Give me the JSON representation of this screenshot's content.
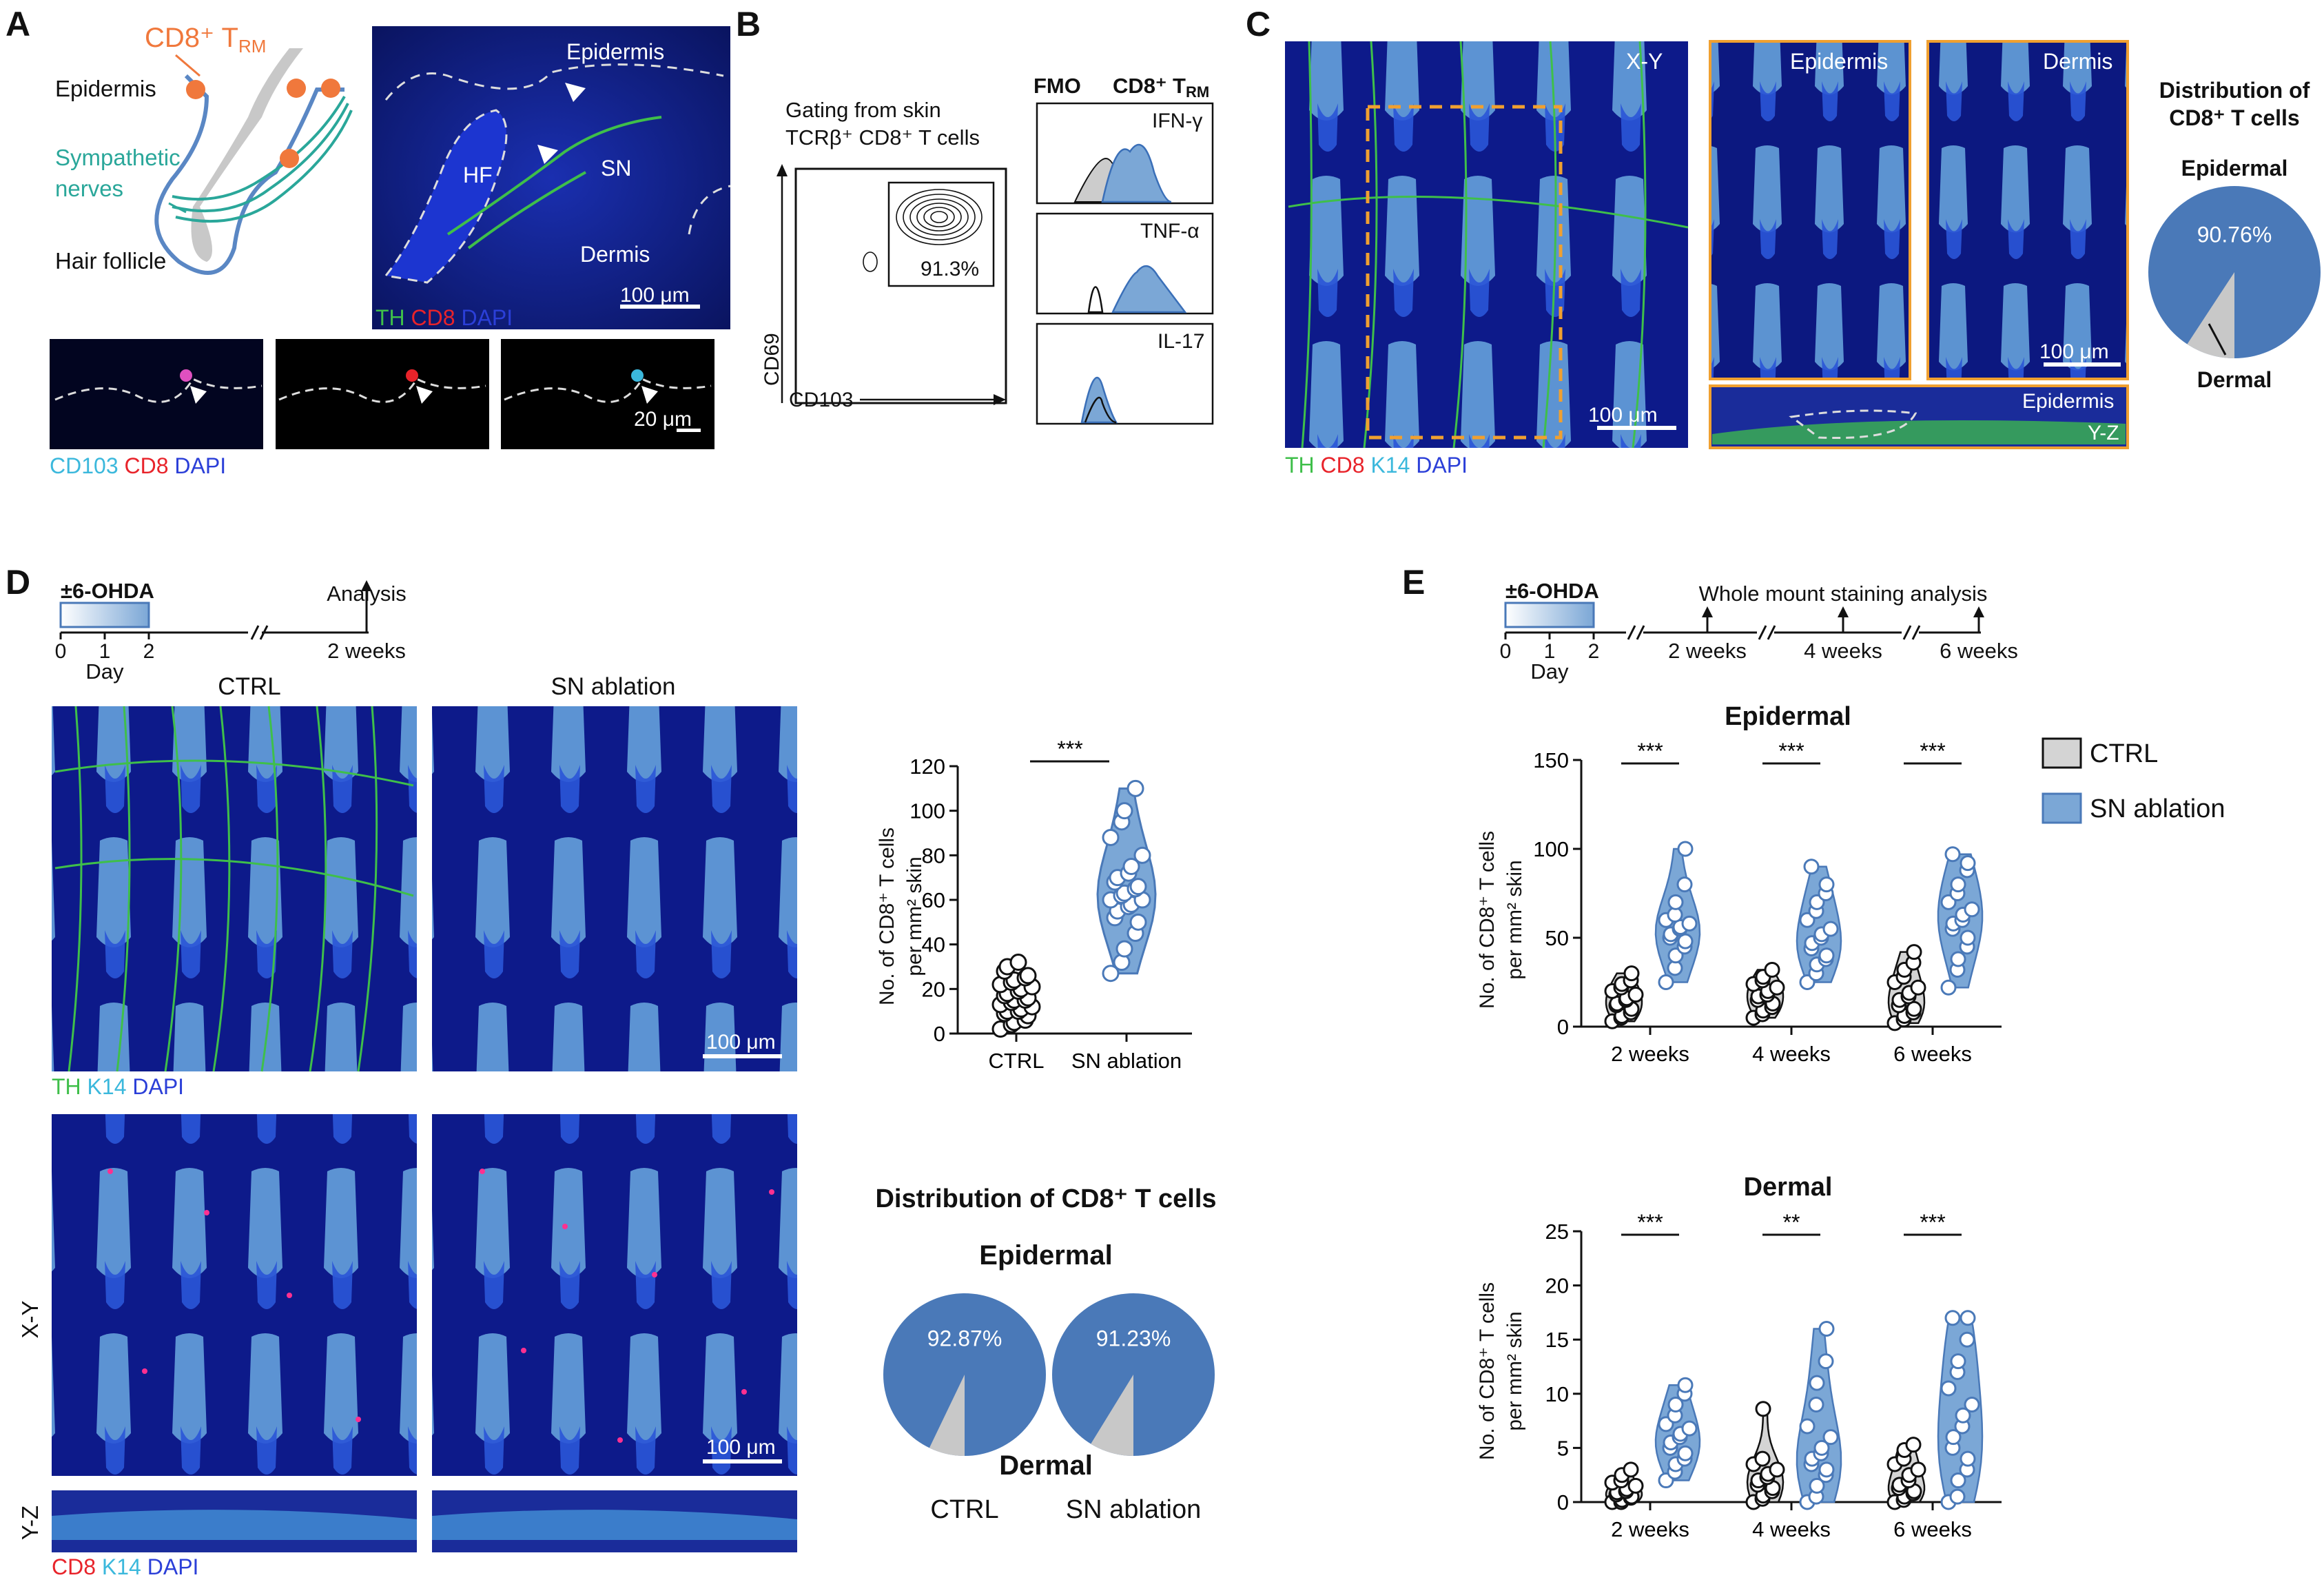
{
  "panels": {
    "A": {
      "label": "A",
      "schematic": {
        "cd8_trm": "CD8⁺ T",
        "cd8_trm_sub": "RM",
        "epidermis": "Epidermis",
        "sympathetic_nerves": "Sympathetic nerves",
        "sympathetic_line1": "Sympathetic",
        "sympathetic_line2": "nerves",
        "hair_follicle": "Hair follicle"
      },
      "image_labels": {
        "epidermis": "Epidermis",
        "hf": "HF",
        "sn": "SN",
        "dermis": "Dermis",
        "scale_100": "100 μm",
        "scale_20": "20 μm"
      },
      "stain_main": {
        "th": "TH",
        "cd8": "CD8",
        "dapi": "DAPI"
      },
      "stain_small": {
        "cd103": "CD103",
        "cd8": "CD8",
        "dapi": "DAPI"
      }
    },
    "B": {
      "label": "B",
      "gating_line1": "Gating from skin",
      "gating_line2": "TCRβ⁺ CD8⁺ T cells",
      "x_axis": "CD103",
      "y_axis": "CD69",
      "gate_percent": "91.3%",
      "legend_fmo": "FMO",
      "legend_trm": "CD8⁺ T",
      "legend_trm_sub": "RM",
      "histograms": [
        "IFN-γ",
        "TNF-α",
        "IL-17"
      ]
    },
    "C": {
      "label": "C",
      "xy": "X-Y",
      "yz": "Y-Z",
      "epidermis": "Epidermis",
      "dermis": "Dermis",
      "scale": "100 μm",
      "stain": {
        "th": "TH",
        "cd8": "CD8",
        "k14": "K14",
        "dapi": "DAPI"
      },
      "pie_title_line1": "Distribution of",
      "pie_title_line2": "CD8⁺ T cells",
      "pie_epidermal_label": "Epidermal",
      "pie_dermal_label": "Dermal",
      "pie_percent": "90.76%",
      "pie_value": 90.76
    },
    "D": {
      "label": "D",
      "timeline": {
        "treatment": "±6-OHDA",
        "ticks": [
          "0",
          "1",
          "2"
        ],
        "day": "Day",
        "analysis": "Analysis",
        "end": "2 weeks"
      },
      "ctrl": "CTRL",
      "sn_ablation": "SN ablation",
      "scale": "100 μm",
      "stain1": {
        "th": "TH",
        "k14": "K14",
        "dapi": "DAPI"
      },
      "stain2": {
        "cd8": "CD8",
        "k14": "K14",
        "dapi": "DAPI"
      },
      "xy": "X-Y",
      "yz": "Y-Z",
      "significance": "***",
      "y_label_line1": "No. of CD8⁺ T cells",
      "y_label_line2": "per mm² skin",
      "pie_title": "Distribution of CD8⁺ T cells",
      "pie_epidermal": "Epidermal",
      "pie_dermal": "Dermal",
      "pie_ctrl_percent": "92.87%",
      "pie_sn_percent": "91.23%",
      "pie_ctrl_label": "CTRL",
      "pie_sn_label": "SN ablation"
    },
    "E": {
      "label": "E",
      "timeline": {
        "treatment": "±6-OHDA",
        "ticks": [
          "0",
          "1",
          "2"
        ],
        "day": "Day",
        "analysis": "Whole mount staining analysis",
        "points": [
          "2 weeks",
          "4 weeks",
          "6 weeks"
        ]
      },
      "epidermal_title": "Epidermal",
      "dermal_title": "Dermal",
      "y_label_line1": "No. of CD8⁺ T cells",
      "y_label_line2": "per mm² skin",
      "epidermal_sig": [
        "***",
        "***",
        "***"
      ],
      "dermal_sig": [
        "***",
        "**",
        "***"
      ],
      "legend": {
        "ctrl": "CTRL",
        "sn": "SN ablation"
      }
    }
  },
  "colors": {
    "ctrl_fill": "#d4d4d4",
    "sn_fill": "#7ba7d6",
    "sn_edge": "#4a79b8",
    "pie_blue": "#4a79b8",
    "pie_gray": "#c8c8c8",
    "label_blue": "#5a87c4",
    "orange": "#f0783c",
    "teal": "#2aa79a"
  },
  "chart_data": [
    {
      "id": "D-violin",
      "type": "scatter",
      "title": "",
      "ylabel": "No. of CD8⁺ T cells per mm² skin",
      "ylim": [
        0,
        120
      ],
      "yticks": [
        0,
        20,
        40,
        60,
        80,
        100,
        120
      ],
      "categories": [
        "CTRL",
        "SN ablation"
      ],
      "series": [
        {
          "name": "CTRL",
          "values": [
            2,
            4,
            5,
            6,
            8,
            9,
            10,
            10,
            11,
            12,
            13,
            14,
            15,
            15,
            16,
            17,
            18,
            19,
            20,
            21,
            22,
            23,
            24,
            25,
            26,
            28,
            30,
            32
          ]
        },
        {
          "name": "SN ablation",
          "values": [
            27,
            32,
            38,
            45,
            50,
            52,
            55,
            57,
            58,
            60,
            60,
            62,
            63,
            65,
            66,
            68,
            70,
            72,
            75,
            80,
            88,
            95,
            100,
            110
          ]
        }
      ]
    },
    {
      "id": "E-epidermal",
      "type": "scatter",
      "title": "Epidermal",
      "ylabel": "No. of CD8⁺ T cells per mm² skin",
      "ylim": [
        0,
        150
      ],
      "yticks": [
        0,
        50,
        100,
        150
      ],
      "categories": [
        "2 weeks",
        "4 weeks",
        "6 weeks"
      ],
      "series": [
        {
          "name": "CTRL",
          "values": [
            [
              3,
              5,
              6,
              8,
              10,
              12,
              13,
              15,
              16,
              18,
              20,
              22,
              24,
              26,
              30
            ],
            [
              5,
              7,
              9,
              11,
              13,
              15,
              17,
              18,
              20,
              22,
              24,
              26,
              28,
              32
            ],
            [
              2,
              4,
              6,
              8,
              10,
              12,
              15,
              17,
              19,
              22,
              25,
              28,
              32,
              36,
              42
            ]
          ]
        },
        {
          "name": "SN ablation",
          "values": [
            [
              25,
              33,
              40,
              45,
              48,
              50,
              52,
              55,
              56,
              58,
              60,
              63,
              70,
              80,
              100
            ],
            [
              25,
              30,
              35,
              38,
              40,
              44,
              47,
              50,
              52,
              55,
              60,
              65,
              70,
              75,
              80,
              90
            ],
            [
              22,
              32,
              38,
              45,
              50,
              55,
              58,
              60,
              63,
              66,
              70,
              75,
              80,
              88,
              92,
              97
            ]
          ]
        }
      ]
    },
    {
      "id": "E-dermal",
      "type": "scatter",
      "title": "Dermal",
      "ylabel": "No. of CD8⁺ T cells per mm² skin",
      "ylim": [
        0,
        25
      ],
      "yticks": [
        0,
        5,
        10,
        15,
        20,
        25
      ],
      "categories": [
        "2 weeks",
        "4 weeks",
        "6 weeks"
      ],
      "series": [
        {
          "name": "CTRL",
          "values": [
            [
              0,
              0,
              0.2,
              0.4,
              0.5,
              0.7,
              0.9,
              1.0,
              1.2,
              1.5,
              1.8,
              2.0,
              2.5,
              3.0
            ],
            [
              0,
              0.3,
              0.6,
              1.0,
              1.3,
              1.6,
              2.0,
              2.3,
              2.6,
              3.0,
              3.5,
              4.0,
              8.6
            ],
            [
              0,
              0.2,
              0.5,
              0.8,
              1.0,
              1.3,
              1.6,
              2.0,
              2.5,
              3.0,
              3.5,
              4.0,
              4.8,
              5.3
            ]
          ]
        },
        {
          "name": "SN ablation",
          "values": [
            [
              2.0,
              2.8,
              3.5,
              4.0,
              4.5,
              5.0,
              5.5,
              6.0,
              6.3,
              6.8,
              7.2,
              8.0,
              9.0,
              10.0,
              10.8
            ],
            [
              0,
              0.5,
              1.5,
              2.5,
              3.0,
              3.5,
              4.0,
              4.5,
              5.0,
              6.0,
              7.0,
              9.0,
              11.0,
              13.0,
              16.0
            ],
            [
              0,
              0.5,
              2.0,
              3.0,
              4.0,
              5.0,
              6.0,
              7.0,
              8.0,
              9.0,
              10.5,
              12.0,
              13.0,
              15.0,
              17.0,
              17.0
            ]
          ]
        }
      ]
    },
    {
      "id": "C-pie",
      "type": "pie",
      "title": "Distribution of CD8⁺ T cells",
      "categories": [
        "Epidermal",
        "Dermal"
      ],
      "values": [
        90.76,
        9.24
      ]
    },
    {
      "id": "D-pies",
      "type": "pie",
      "title": "Distribution of CD8⁺ T cells",
      "series": [
        {
          "name": "CTRL",
          "values": [
            92.87,
            7.13
          ]
        },
        {
          "name": "SN ablation",
          "values": [
            91.23,
            8.77
          ]
        }
      ],
      "categories": [
        "Epidermal",
        "Dermal"
      ]
    }
  ]
}
